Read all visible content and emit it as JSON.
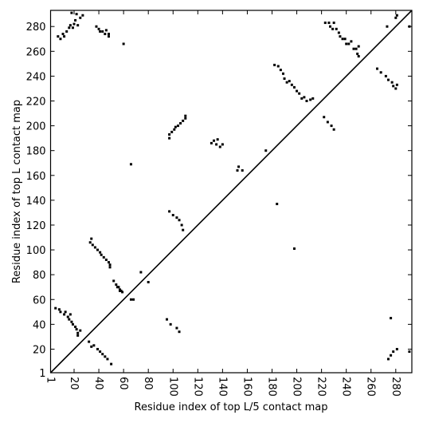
{
  "chart_data": {
    "type": "scatter",
    "xlabel": "Residue index of top L/5 contact map",
    "ylabel": "Residue index of top L contact map",
    "xlim": [
      1,
      293
    ],
    "ylim": [
      1,
      293
    ],
    "xticks": [
      1,
      20,
      40,
      60,
      80,
      100,
      120,
      140,
      160,
      180,
      200,
      220,
      240,
      260,
      280
    ],
    "yticks": [
      1,
      20,
      40,
      60,
      80,
      100,
      120,
      140,
      160,
      180,
      200,
      220,
      240,
      260,
      280
    ],
    "diagonal": true,
    "color": "#000000",
    "x": [
      7,
      9,
      11,
      12,
      14,
      16,
      17,
      19,
      20,
      21,
      23,
      25,
      27,
      18,
      22,
      38,
      40,
      41,
      43,
      45,
      46,
      48,
      48,
      60,
      97,
      97,
      99,
      101,
      102,
      104,
      106,
      108,
      110,
      110,
      131,
      133,
      135,
      136,
      138,
      140,
      152,
      153,
      156,
      175,
      66,
      74,
      80,
      33,
      34,
      35,
      37,
      39,
      41,
      42,
      44,
      46,
      48,
      49,
      49,
      52,
      54,
      55,
      56,
      57,
      58,
      59,
      57,
      66,
      68,
      5,
      8,
      9,
      12,
      13,
      15,
      16,
      18,
      19,
      21,
      22,
      23,
      23,
      25,
      17,
      32,
      34,
      36,
      39,
      41,
      43,
      45,
      47,
      50,
      95,
      98,
      103,
      105,
      97,
      100,
      103,
      105,
      107,
      108,
      198,
      184,
      182,
      185,
      187,
      189,
      190,
      192,
      194,
      196,
      198,
      200,
      202,
      204,
      206,
      208,
      211,
      213,
      222,
      225,
      228,
      230,
      223,
      226,
      227,
      229,
      230,
      232,
      234,
      235,
      237,
      239,
      240,
      242,
      244,
      246,
      248,
      249,
      250,
      250,
      265,
      268,
      272,
      274,
      277,
      278,
      280,
      281,
      273,
      280,
      281,
      291,
      276,
      274,
      276,
      278,
      281,
      291
    ],
    "values": [
      272,
      270,
      274,
      272,
      276,
      279,
      281,
      279,
      282,
      285,
      281,
      287,
      289,
      291,
      290,
      280,
      278,
      276,
      276,
      274,
      277,
      272,
      274,
      266,
      190,
      193,
      195,
      197,
      199,
      200,
      202,
      204,
      206,
      208,
      186,
      188,
      185,
      189,
      183,
      185,
      164,
      167,
      164,
      180,
      169,
      82,
      74,
      106,
      109,
      104,
      102,
      100,
      98,
      96,
      94,
      92,
      90,
      88,
      86,
      75,
      72,
      70,
      70,
      68,
      67,
      66,
      67,
      60,
      60,
      53,
      52,
      50,
      48,
      50,
      46,
      44,
      42,
      40,
      38,
      36,
      33,
      31,
      35,
      48,
      26,
      22,
      23,
      20,
      18,
      16,
      14,
      12,
      8,
      44,
      40,
      37,
      34,
      131,
      128,
      126,
      124,
      120,
      116,
      101,
      137,
      249,
      248,
      245,
      242,
      238,
      235,
      236,
      233,
      231,
      228,
      226,
      222,
      223,
      220,
      221,
      222,
      207,
      203,
      200,
      197,
      283,
      283,
      280,
      278,
      283,
      278,
      275,
      272,
      270,
      270,
      266,
      266,
      268,
      262,
      262,
      258,
      256,
      264,
      246,
      243,
      240,
      237,
      235,
      232,
      230,
      233,
      280,
      287,
      289,
      280,
      45,
      12,
      15,
      18,
      20,
      18
    ]
  }
}
